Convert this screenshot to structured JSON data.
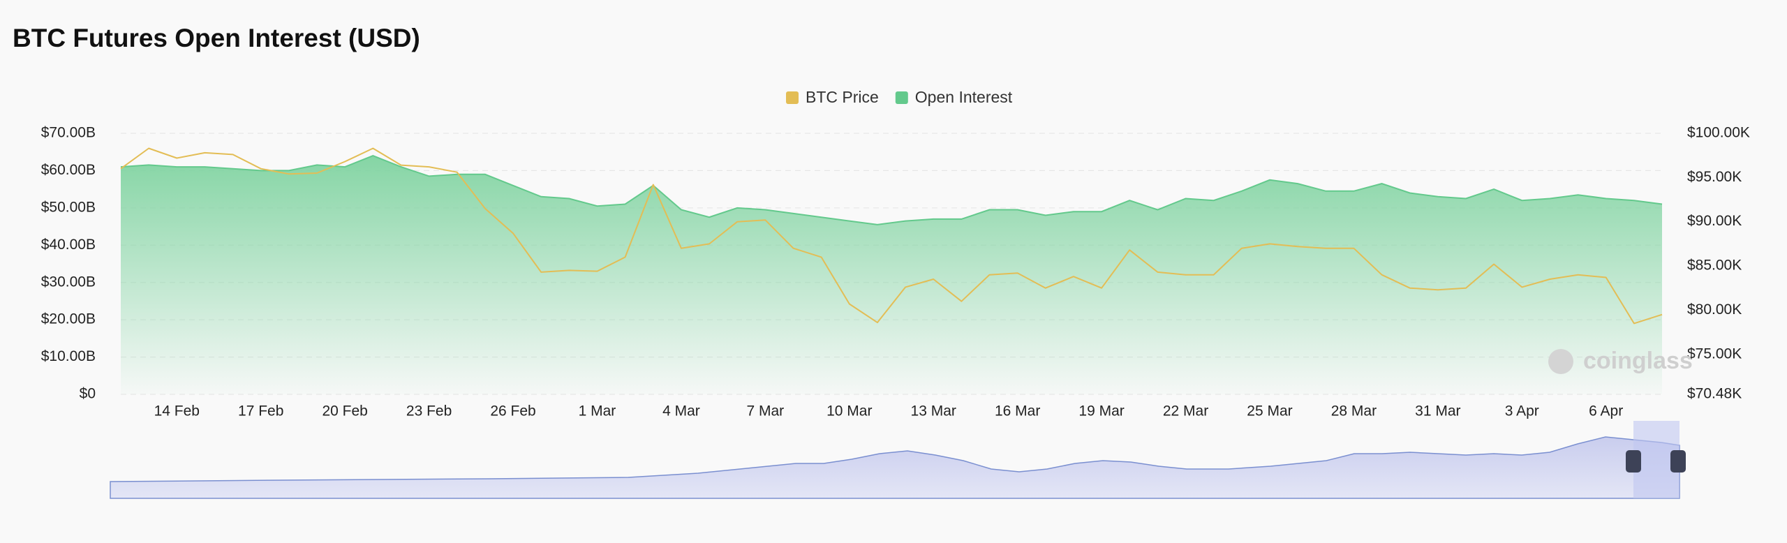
{
  "chart_data": {
    "type": "area-line",
    "title": "BTC Futures Open Interest (USD)",
    "watermark": "coinglass",
    "categories": [
      null,
      null,
      "14 Feb",
      null,
      null,
      "17 Feb",
      null,
      null,
      "20 Feb",
      null,
      null,
      "23 Feb",
      null,
      null,
      "26 Feb",
      null,
      null,
      "1 Mar",
      null,
      null,
      "4 Mar",
      null,
      null,
      "7 Mar",
      null,
      null,
      "10 Mar",
      null,
      null,
      "13 Mar",
      null,
      null,
      "16 Mar",
      null,
      null,
      "19 Mar",
      null,
      null,
      "22 Mar",
      null,
      null,
      "25 Mar",
      null,
      null,
      "28 Mar",
      null,
      null,
      "31 Mar",
      null,
      null,
      "3 Apr",
      null,
      null,
      "6 Apr",
      null,
      null
    ],
    "series": [
      {
        "name": "BTC Price",
        "color": "#e3bd55",
        "axis": "y2",
        "values": [
          96000,
          98300,
          97200,
          97800,
          97600,
          96000,
          95400,
          95500,
          96800,
          98300,
          96400,
          96200,
          95600,
          91500,
          88700,
          84300,
          84500,
          84400,
          86000,
          94200,
          87000,
          87500,
          90000,
          90200,
          87000,
          86000,
          80700,
          78600,
          82600,
          83500,
          81000,
          84000,
          84200,
          82500,
          83800,
          82500,
          86800,
          84300,
          84000,
          84000,
          87000,
          87500,
          87200,
          87000,
          87000,
          84000,
          82500,
          82300,
          82500,
          85200,
          82600,
          83500,
          84000,
          83700,
          78500,
          79500
        ]
      },
      {
        "name": "Open Interest",
        "color": "#63c98c",
        "values": [
          61,
          61.5,
          61,
          61,
          60.5,
          60,
          60,
          61.5,
          61,
          64,
          61,
          58.5,
          59,
          59,
          56,
          53,
          52.5,
          50.5,
          51,
          56,
          49.5,
          47.5,
          50,
          49.5,
          48.5,
          47.5,
          46.5,
          45.5,
          46.5,
          47,
          47,
          49.5,
          49.5,
          48,
          49,
          49,
          52,
          49.5,
          52.5,
          52,
          54.5,
          57.5,
          56.5,
          54.5,
          54.5,
          56.5,
          54,
          53,
          52.5,
          55,
          52,
          52.5,
          53.5,
          52.5,
          52,
          51
        ]
      }
    ],
    "ylim": [
      0,
      70
    ],
    "yticks": [
      {
        "value": 0,
        "label": "$0"
      },
      {
        "value": 10,
        "label": "$10.00B"
      },
      {
        "value": 20,
        "label": "$20.00B"
      },
      {
        "value": 30,
        "label": "$30.00B"
      },
      {
        "value": 40,
        "label": "$40.00B"
      },
      {
        "value": 50,
        "label": "$50.00B"
      },
      {
        "value": 60,
        "label": "$60.00B"
      },
      {
        "value": 70,
        "label": "$70.00B"
      }
    ],
    "y2lim": [
      70480,
      100000
    ],
    "y2ticks": [
      {
        "value": 70480,
        "label": "$70.48K"
      },
      {
        "value": 75000,
        "label": "$75.00K"
      },
      {
        "value": 80000,
        "label": "$80.00K"
      },
      {
        "value": 85000,
        "label": "$85.00K"
      },
      {
        "value": 90000,
        "label": "$90.00K"
      },
      {
        "value": 95000,
        "label": "$95.00K"
      },
      {
        "value": 100000,
        "label": "$100.00K"
      }
    ],
    "grid": true,
    "legend": "top"
  }
}
